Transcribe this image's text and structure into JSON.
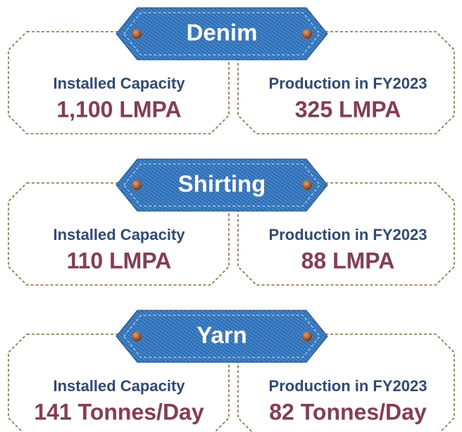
{
  "sections": [
    {
      "title": "Denim",
      "left": {
        "label": "Installed Capacity",
        "value": "1,100 LMPA"
      },
      "right": {
        "label": "Production in FY2023",
        "value": "325 LMPA"
      }
    },
    {
      "title": "Shirting",
      "left": {
        "label": "Installed Capacity",
        "value": "110 LMPA"
      },
      "right": {
        "label": "Production in FY2023",
        "value": "88 LMPA"
      }
    },
    {
      "title": "Yarn",
      "left": {
        "label": "Installed Capacity",
        "value": "141 Tonnes/Day"
      },
      "right": {
        "label": "Production in FY2023",
        "value": "82 Tonnes/Day"
      }
    }
  ]
}
